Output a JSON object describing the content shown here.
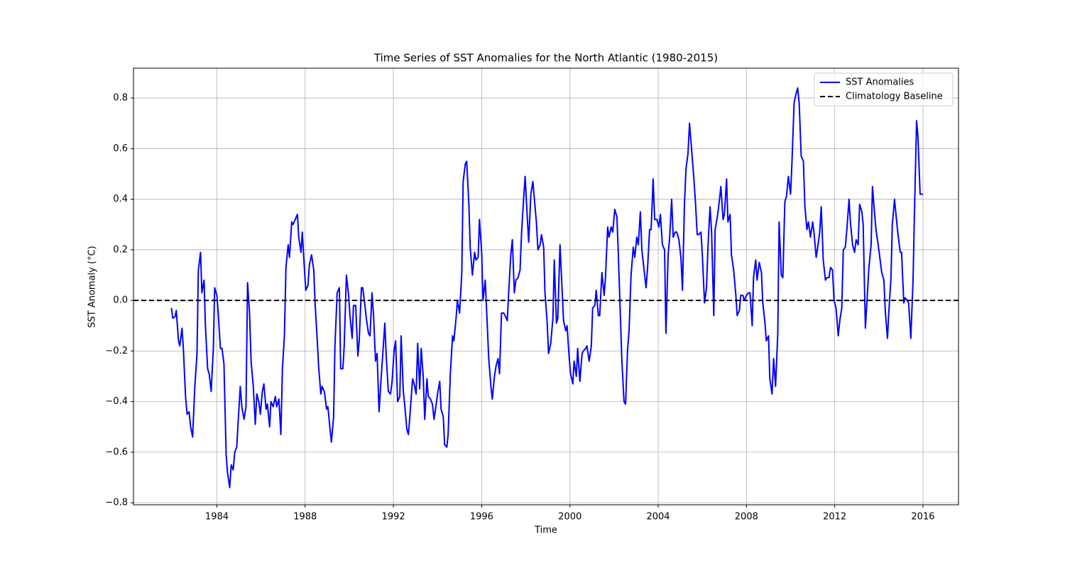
{
  "chart_data": {
    "type": "line",
    "title": "Time Series of SST Anomalies for the North Atlantic (1980-2015)",
    "xlabel": "Time",
    "ylabel": "SST Anomaly (°C)",
    "grid": true,
    "legend": "upper right",
    "xlim": [
      1980.22,
      2017.61
    ],
    "ylim": [
      -0.808,
      0.918
    ],
    "xticks": [
      1984,
      1988,
      1992,
      1996,
      2000,
      2004,
      2008,
      2012,
      2016
    ],
    "yticks": [
      {
        "value": -0.8,
        "label": "−0.8"
      },
      {
        "value": -0.6,
        "label": "−0.6"
      },
      {
        "value": -0.4,
        "label": "−0.4"
      },
      {
        "value": -0.2,
        "label": "−0.2"
      },
      {
        "value": 0,
        "label": "0.0"
      },
      0.2,
      0.4,
      0.6,
      0.8
    ],
    "hlines": [
      {
        "name": "Climatology Baseline",
        "value": 0,
        "color": "#000000",
        "dashed": true
      }
    ],
    "series": [
      {
        "name": "SST Anomalies",
        "color": "#0000ff",
        "x": [
          1981.94,
          1982.0,
          1982.1,
          1982.16,
          1982.26,
          1982.32,
          1982.42,
          1982.48,
          1982.58,
          1982.65,
          1982.74,
          1982.81,
          1982.9,
          1983.0,
          1983.1,
          1983.16,
          1983.26,
          1983.32,
          1983.42,
          1983.48,
          1983.58,
          1983.65,
          1983.74,
          1983.84,
          1983.9,
          1984.0,
          1984.06,
          1984.16,
          1984.23,
          1984.32,
          1984.42,
          1984.48,
          1984.58,
          1984.65,
          1984.74,
          1984.81,
          1984.9,
          1984.97,
          1985.06,
          1985.13,
          1985.23,
          1985.32,
          1985.39,
          1985.48,
          1985.55,
          1985.65,
          1985.74,
          1985.81,
          1985.9,
          1985.97,
          1986.06,
          1986.13,
          1986.23,
          1986.29,
          1986.39,
          1986.45,
          1986.55,
          1986.65,
          1986.71,
          1986.81,
          1986.9,
          1986.97,
          1987.06,
          1987.13,
          1987.23,
          1987.29,
          1987.39,
          1987.45,
          1987.55,
          1987.65,
          1987.71,
          1987.81,
          1987.87,
          1987.97,
          1988.03,
          1988.13,
          1988.19,
          1988.29,
          1988.39,
          1988.45,
          1988.55,
          1988.61,
          1988.71,
          1988.77,
          1988.87,
          1988.97,
          1989.03,
          1989.13,
          1989.19,
          1989.29,
          1989.35,
          1989.45,
          1989.55,
          1989.61,
          1989.71,
          1989.77,
          1989.87,
          1989.97,
          1990.03,
          1990.13,
          1990.19,
          1990.29,
          1990.39,
          1990.45,
          1990.55,
          1990.61,
          1990.71,
          1990.77,
          1990.87,
          1990.94,
          1991.03,
          1991.1,
          1991.19,
          1991.26,
          1991.35,
          1991.45,
          1991.52,
          1991.61,
          1991.68,
          1991.77,
          1991.87,
          1991.94,
          1992.03,
          1992.1,
          1992.19,
          1992.29,
          1992.35,
          1992.45,
          1992.52,
          1992.61,
          1992.68,
          1992.77,
          1992.87,
          1992.94,
          1993.03,
          1993.1,
          1993.19,
          1993.26,
          1993.35,
          1993.42,
          1993.52,
          1993.58,
          1993.68,
          1993.77,
          1993.84,
          1993.94,
          1994.0,
          1994.1,
          1994.16,
          1994.26,
          1994.32,
          1994.42,
          1994.48,
          1994.58,
          1994.68,
          1994.74,
          1994.84,
          1994.9,
          1995.0,
          1995.1,
          1995.16,
          1995.26,
          1995.32,
          1995.42,
          1995.48,
          1995.58,
          1995.68,
          1995.74,
          1995.84,
          1995.9,
          1996.0,
          1996.06,
          1996.16,
          1996.23,
          1996.32,
          1996.42,
          1996.48,
          1996.58,
          1996.65,
          1996.74,
          1996.81,
          1996.9,
          1997.0,
          1997.06,
          1997.16,
          1997.23,
          1997.32,
          1997.39,
          1997.48,
          1997.55,
          1997.65,
          1997.74,
          1997.81,
          1997.9,
          1997.97,
          1998.06,
          1998.13,
          1998.23,
          1998.32,
          1998.39,
          1998.48,
          1998.55,
          1998.65,
          1998.71,
          1998.81,
          1998.87,
          1998.97,
          1999.03,
          1999.13,
          1999.23,
          1999.29,
          1999.39,
          1999.45,
          1999.55,
          1999.61,
          1999.71,
          1999.81,
          1999.87,
          1999.97,
          2000.03,
          2000.13,
          2000.19,
          2000.29,
          2000.35,
          2000.45,
          2000.55,
          2000.61,
          2000.71,
          2000.77,
          2000.87,
          2000.97,
          2001.03,
          2001.13,
          2001.19,
          2001.29,
          2001.35,
          2001.45,
          2001.55,
          2001.61,
          2001.71,
          2001.77,
          2001.87,
          2001.94,
          2002.03,
          2002.13,
          2002.19,
          2002.29,
          2002.35,
          2002.45,
          2002.52,
          2002.61,
          2002.68,
          2002.77,
          2002.87,
          2002.94,
          2003.03,
          2003.1,
          2003.19,
          2003.26,
          2003.35,
          2003.45,
          2003.52,
          2003.61,
          2003.68,
          2003.77,
          2003.84,
          2003.94,
          2004.03,
          2004.1,
          2004.19,
          2004.29,
          2004.35,
          2004.45,
          2004.52,
          2004.61,
          2004.68,
          2004.77,
          2004.84,
          2004.94,
          2005.03,
          2005.1,
          2005.19,
          2005.26,
          2005.35,
          2005.42,
          2005.52,
          2005.61,
          2005.68,
          2005.77,
          2005.84,
          2005.94,
          2006.0,
          2006.1,
          2006.19,
          2006.26,
          2006.35,
          2006.42,
          2006.52,
          2006.58,
          2006.68,
          2006.74,
          2006.84,
          2006.94,
          2007.0,
          2007.1,
          2007.16,
          2007.26,
          2007.32,
          2007.42,
          2007.52,
          2007.58,
          2007.68,
          2007.74,
          2007.84,
          2007.9,
          2008.0,
          2008.1,
          2008.16,
          2008.26,
          2008.32,
          2008.42,
          2008.48,
          2008.58,
          2008.68,
          2008.74,
          2008.84,
          2008.9,
          2009.0,
          2009.06,
          2009.16,
          2009.23,
          2009.32,
          2009.42,
          2009.48,
          2009.58,
          2009.65,
          2009.74,
          2009.81,
          2009.9,
          2010.0,
          2010.06,
          2010.16,
          2010.23,
          2010.32,
          2010.39,
          2010.48,
          2010.58,
          2010.65,
          2010.74,
          2010.81,
          2010.9,
          2011.0,
          2011.06,
          2011.16,
          2011.23,
          2011.32,
          2011.39,
          2011.48,
          2011.58,
          2011.65,
          2011.74,
          2011.81,
          2011.9,
          2011.97,
          2012.06,
          2012.16,
          2012.23,
          2012.32,
          2012.39,
          2012.48,
          2012.55,
          2012.65,
          2012.71,
          2012.81,
          2012.9,
          2012.97,
          2013.06,
          2013.13,
          2013.23,
          2013.29,
          2013.39,
          2013.45,
          2013.55,
          2013.65,
          2013.71,
          2013.81,
          2013.87,
          2013.97,
          2014.03,
          2014.13,
          2014.23,
          2014.29,
          2014.39,
          2014.45,
          2014.55,
          2014.61,
          2014.71,
          2014.81,
          2014.87,
          2014.97,
          2015.03,
          2015.13,
          2015.19,
          2015.29,
          2015.35,
          2015.45,
          2015.55,
          2015.61,
          2015.71,
          2015.77,
          2015.87,
          2016.0
        ],
        "values": [
          -0.03,
          -0.07,
          -0.065,
          -0.04,
          -0.16,
          -0.18,
          -0.11,
          -0.19,
          -0.38,
          -0.45,
          -0.44,
          -0.5,
          -0.54,
          -0.34,
          -0.21,
          0.12,
          0.19,
          0.03,
          0.08,
          -0.1,
          -0.27,
          -0.29,
          -0.36,
          -0.19,
          0.05,
          0.02,
          -0.05,
          -0.19,
          -0.19,
          -0.25,
          -0.61,
          -0.68,
          -0.74,
          -0.65,
          -0.67,
          -0.6,
          -0.58,
          -0.47,
          -0.34,
          -0.42,
          -0.47,
          -0.42,
          0.07,
          -0.05,
          -0.24,
          -0.34,
          -0.49,
          -0.37,
          -0.4,
          -0.45,
          -0.36,
          -0.33,
          -0.43,
          -0.41,
          -0.5,
          -0.4,
          -0.42,
          -0.38,
          -0.42,
          -0.39,
          -0.53,
          -0.27,
          -0.14,
          0.13,
          0.22,
          0.17,
          0.31,
          0.3,
          0.32,
          0.34,
          0.25,
          0.19,
          0.27,
          0.12,
          0.04,
          0.06,
          0.14,
          0.18,
          0.12,
          -0.01,
          -0.16,
          -0.26,
          -0.37,
          -0.34,
          -0.36,
          -0.43,
          -0.42,
          -0.51,
          -0.56,
          -0.46,
          -0.18,
          0.03,
          0.05,
          -0.27,
          -0.27,
          -0.18,
          0.1,
          0.02,
          -0.06,
          -0.15,
          -0.02,
          -0.02,
          -0.22,
          -0.16,
          0.05,
          0.05,
          -0.02,
          -0.07,
          -0.13,
          -0.14,
          0.03,
          -0.06,
          -0.24,
          -0.21,
          -0.44,
          -0.3,
          -0.21,
          -0.09,
          -0.23,
          -0.36,
          -0.37,
          -0.32,
          -0.2,
          -0.16,
          -0.4,
          -0.38,
          -0.14,
          -0.36,
          -0.42,
          -0.51,
          -0.53,
          -0.43,
          -0.31,
          -0.33,
          -0.37,
          -0.17,
          -0.35,
          -0.19,
          -0.3,
          -0.47,
          -0.31,
          -0.38,
          -0.39,
          -0.41,
          -0.47,
          -0.41,
          -0.37,
          -0.32,
          -0.43,
          -0.46,
          -0.57,
          -0.58,
          -0.53,
          -0.29,
          -0.14,
          -0.16,
          -0.07,
          0,
          -0.05,
          0.11,
          0.47,
          0.54,
          0.55,
          0.38,
          0.21,
          0.1,
          0.19,
          0.16,
          0.17,
          0.32,
          0.19,
          0,
          0.08,
          -0.05,
          -0.23,
          -0.34,
          -0.39,
          -0.3,
          -0.26,
          -0.23,
          -0.29,
          -0.05,
          -0.05,
          -0.06,
          -0.08,
          0.04,
          0.18,
          0.24,
          0.03,
          0.08,
          0.09,
          0.12,
          0.27,
          0.4,
          0.49,
          0.34,
          0.23,
          0.42,
          0.47,
          0.4,
          0.31,
          0.2,
          0.22,
          0.26,
          0.21,
          0.03,
          -0.09,
          -0.21,
          -0.17,
          -0.07,
          0.16,
          -0.09,
          -0.07,
          0.22,
          0.11,
          -0.08,
          -0.12,
          -0.1,
          -0.23,
          -0.29,
          -0.33,
          -0.24,
          -0.3,
          -0.19,
          -0.32,
          -0.21,
          -0.2,
          -0.19,
          -0.18,
          -0.24,
          -0.18,
          -0.03,
          -0.02,
          0.04,
          -0.06,
          -0.06,
          0.11,
          0.02,
          0.09,
          0.29,
          0.25,
          0.29,
          0.27,
          0.36,
          0.33,
          0.19,
          -0.07,
          -0.23,
          -0.4,
          -0.41,
          -0.2,
          -0.12,
          0.1,
          0.21,
          0.17,
          0.25,
          0.22,
          0.35,
          0.2,
          0.13,
          0.05,
          0.13,
          0.28,
          0.28,
          0.48,
          0.32,
          0.32,
          0.29,
          0.34,
          0.22,
          0.2,
          -0.13,
          0.18,
          0.25,
          0.4,
          0.25,
          0.27,
          0.27,
          0.24,
          0.17,
          0.04,
          0.38,
          0.52,
          0.58,
          0.7,
          0.59,
          0.49,
          0.4,
          0.26,
          0.26,
          0.27,
          0.18,
          -0.01,
          0.05,
          0.22,
          0.37,
          0.27,
          -0.06,
          0.28,
          0.33,
          0.37,
          0.45,
          0.32,
          0.34,
          0.48,
          0.31,
          0.34,
          0.18,
          0.12,
          0.02,
          -0.06,
          -0.04,
          0.02,
          0.02,
          0,
          0.02,
          0.03,
          0.03,
          -0.1,
          0.09,
          0.16,
          0.08,
          0.15,
          0.11,
          -0.01,
          -0.09,
          -0.16,
          -0.14,
          -0.31,
          -0.37,
          -0.23,
          -0.34,
          -0.13,
          0.31,
          0.1,
          0.09,
          0.39,
          0.41,
          0.49,
          0.42,
          0.54,
          0.78,
          0.81,
          0.84,
          0.78,
          0.57,
          0.55,
          0.37,
          0.28,
          0.31,
          0.25,
          0.31,
          0.27,
          0.17,
          0.21,
          0.27,
          0.37,
          0.16,
          0.08,
          0.09,
          0.09,
          0.13,
          0.12,
          0,
          -0.03,
          -0.14,
          -0.08,
          -0.03,
          0.2,
          0.21,
          0.28,
          0.4,
          0.31,
          0.22,
          0.19,
          0.24,
          0.22,
          0.38,
          0.35,
          0.3,
          -0.11,
          -0.02,
          0.13,
          0.22,
          0.45,
          0.34,
          0.28,
          0.22,
          0.18,
          0.11,
          0.08,
          -0.04,
          -0.15,
          -0.05,
          0.09,
          0.3,
          0.4,
          0.31,
          0.26,
          0.19,
          0.19,
          -0.01,
          0.01,
          0,
          -0.01,
          -0.15,
          0.08,
          0.33,
          0.71,
          0.65,
          0.42,
          0.42
        ]
      }
    ]
  }
}
